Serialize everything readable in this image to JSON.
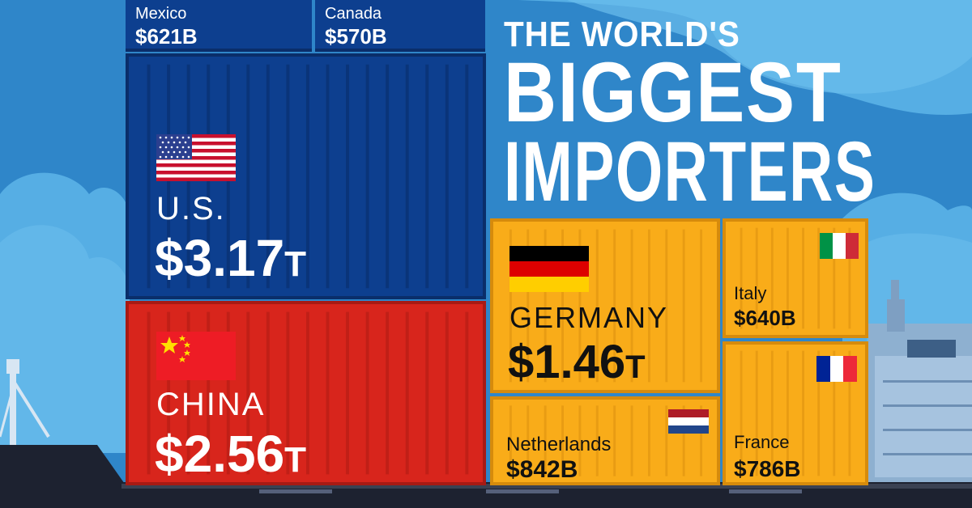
{
  "title": {
    "line1": "THE WORLD'S",
    "line2": "BIGGEST",
    "line3": "IMPORTERS"
  },
  "countries": [
    {
      "name": "Mexico",
      "value": "$621B"
    },
    {
      "name": "Canada",
      "value": "$570B"
    },
    {
      "name": "U.S.",
      "value": "$3.17",
      "suffix": "T"
    },
    {
      "name": "CHINA",
      "value": "$2.56",
      "suffix": "T"
    },
    {
      "name": "GERMANY",
      "value": "$1.46",
      "suffix": "T"
    },
    {
      "name": "Netherlands",
      "value": "$842B"
    },
    {
      "name": "Italy",
      "value": "$640B"
    },
    {
      "name": "France",
      "value": "$786B"
    }
  ],
  "colors": {
    "sky": "#2f86c9",
    "blue_container": "#0d3f8f",
    "red_container": "#d8251c",
    "orange_container": "#f9ac19",
    "ship_hull": "#1d2230"
  }
}
